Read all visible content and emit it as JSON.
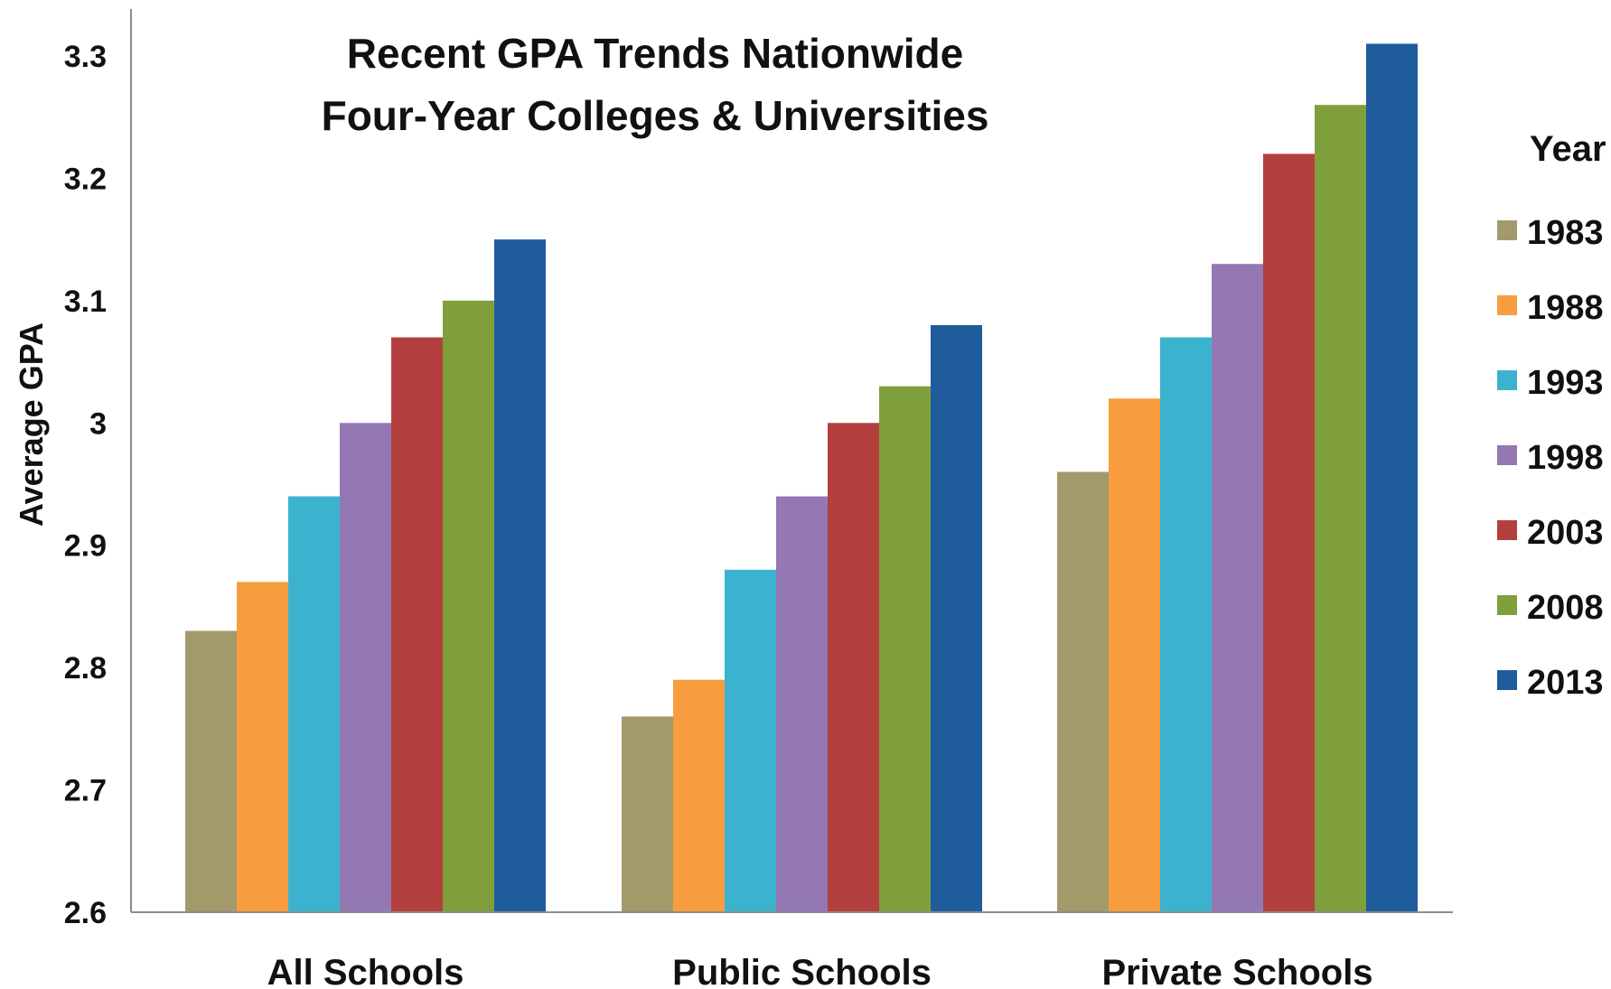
{
  "chart_data": {
    "type": "bar",
    "title_lines": [
      "Recent GPA Trends Nationwide",
      "Four-Year Colleges & Universities"
    ],
    "xlabel": "",
    "ylabel": "Average GPA",
    "ylim": [
      2.6,
      3.3
    ],
    "yticks": [
      "2.6",
      "2.7",
      "2.8",
      "2.9",
      "3",
      "3.1",
      "3.2",
      "3.3"
    ],
    "ytick_values": [
      2.6,
      2.7,
      2.8,
      2.9,
      3.0,
      3.1,
      3.2,
      3.3
    ],
    "grid": false,
    "legend_title": "Year",
    "legend_position": "right",
    "categories": [
      "All Schools",
      "Public Schools",
      "Private Schools"
    ],
    "series": [
      {
        "name": "1983",
        "color": "#a39a6c",
        "values": [
          2.83,
          2.76,
          2.96
        ]
      },
      {
        "name": "1988",
        "color": "#f79c3f",
        "values": [
          2.87,
          2.79,
          3.02
        ]
      },
      {
        "name": "1993",
        "color": "#3bb3cf",
        "values": [
          2.94,
          2.88,
          3.07
        ]
      },
      {
        "name": "1998",
        "color": "#9478b4",
        "values": [
          3.0,
          2.94,
          3.13
        ]
      },
      {
        "name": "2003",
        "color": "#b33f3f",
        "values": [
          3.07,
          3.0,
          3.22
        ]
      },
      {
        "name": "2008",
        "color": "#7f9f3c",
        "values": [
          3.1,
          3.03,
          3.26
        ]
      },
      {
        "name": "2013",
        "color": "#1f5c9c",
        "values": [
          3.15,
          3.08,
          3.31
        ]
      }
    ]
  }
}
